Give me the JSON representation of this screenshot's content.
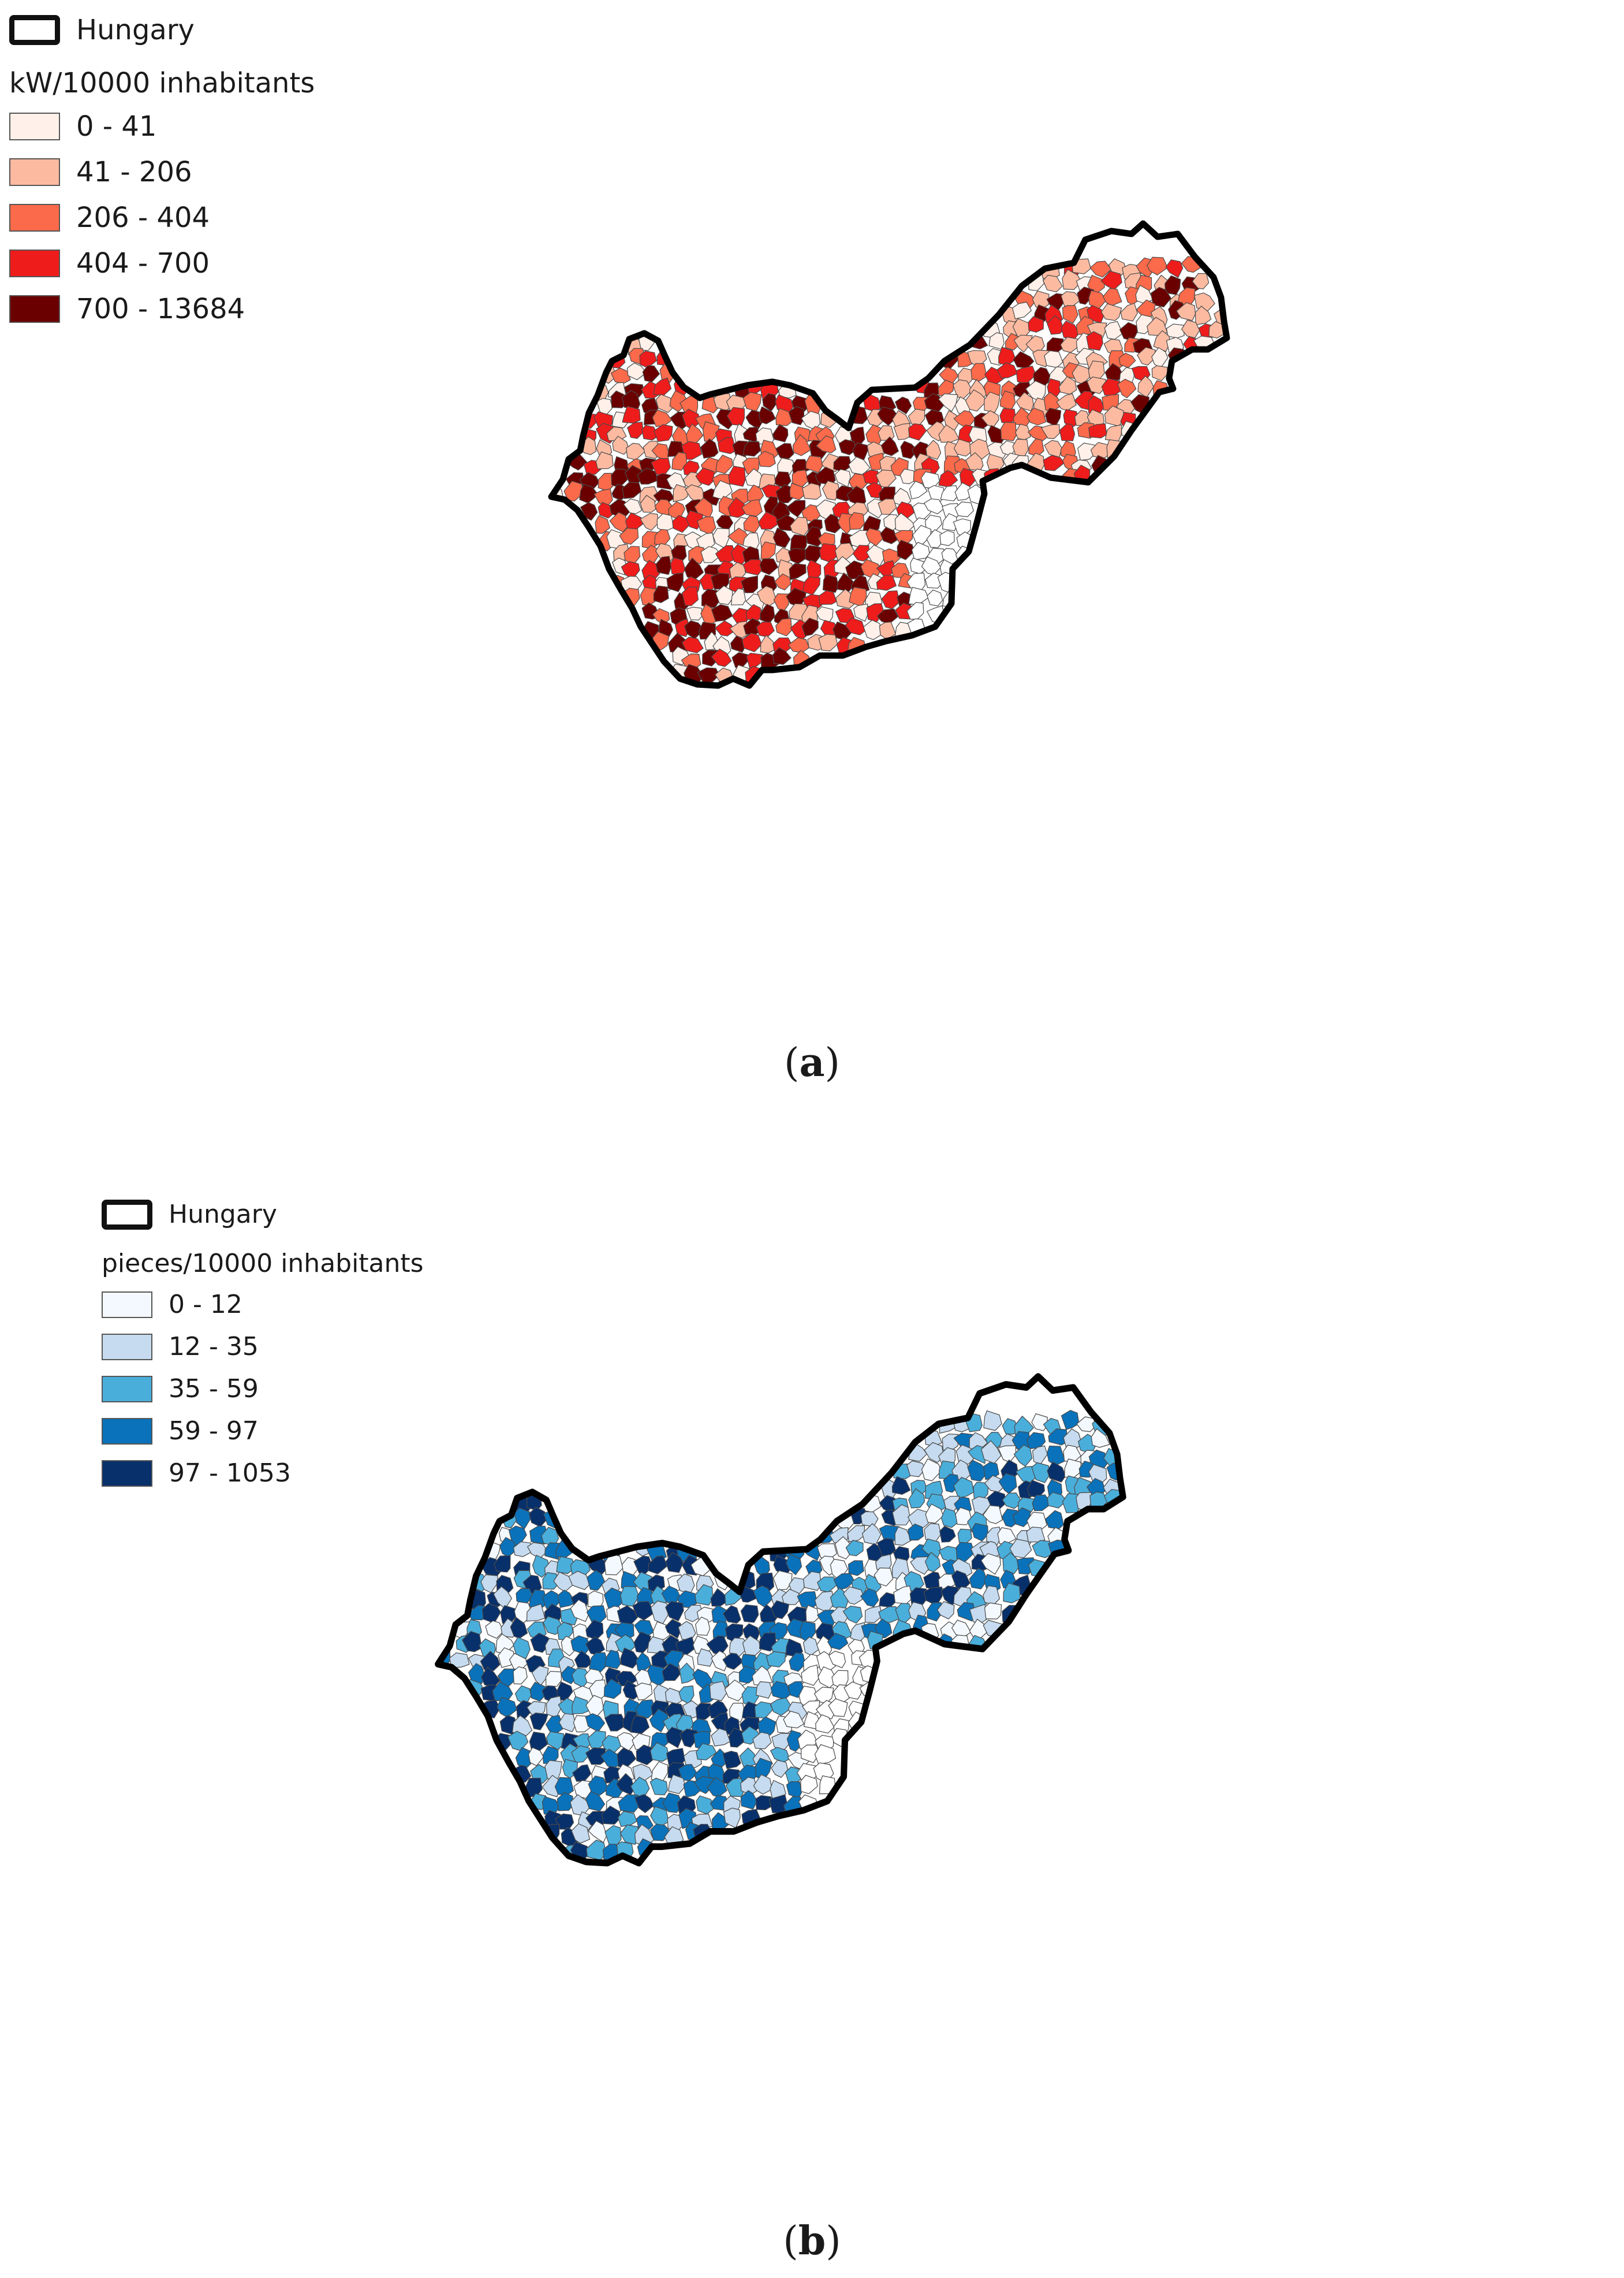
{
  "panels": [
    {
      "caption_letter": "a",
      "legend": {
        "outline_label": "Hungary",
        "title": "kW/10000 inhabitants",
        "classes": [
          {
            "label": "0 - 41",
            "color": "#fff1ea"
          },
          {
            "label": "41 - 206",
            "color": "#fcbba1"
          },
          {
            "label": "206 - 404",
            "color": "#fb6a4a"
          },
          {
            "label": "404 - 700",
            "color": "#ef1c1c"
          },
          {
            "label": "700 - 13684",
            "color": "#6b0000"
          }
        ]
      }
    },
    {
      "caption_letter": "b",
      "legend": {
        "outline_label": "Hungary",
        "title": "pieces/10000 inhabitants",
        "classes": [
          {
            "label": "0 - 12",
            "color": "#f4f9ff"
          },
          {
            "label": "12 - 35",
            "color": "#c6dbef"
          },
          {
            "label": "35 - 59",
            "color": "#4aaedb"
          },
          {
            "label": "59 - 97",
            "color": "#0a72ba"
          },
          {
            "label": "97 - 1053",
            "color": "#08306b"
          }
        ]
      }
    }
  ]
}
